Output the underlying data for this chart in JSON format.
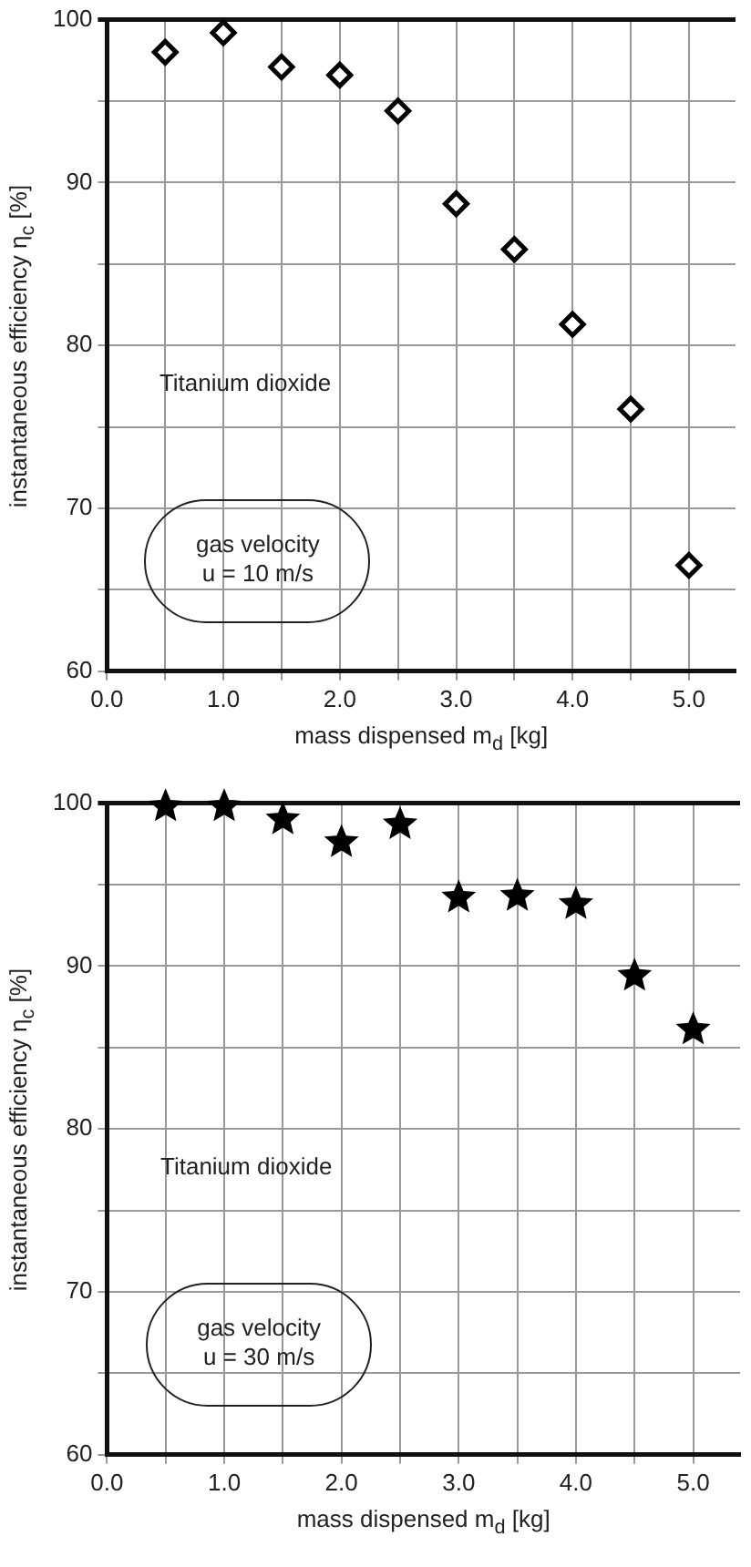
{
  "chart_data": [
    {
      "type": "scatter",
      "xlabel": "mass dispensed m$_{d}$ [kg]",
      "ylabel": "instantaneous efficiency η$_{c}$ [%]",
      "x": [
        0.5,
        1.0,
        1.5,
        2.0,
        2.5,
        3.0,
        3.5,
        4.0,
        4.5,
        5.0
      ],
      "series": [
        {
          "color": "#000000",
          "marker": "diamond",
          "values": [
            98.0,
            99.2,
            97.1,
            96.6,
            94.4,
            88.7,
            85.9,
            81.3,
            76.1,
            66.5
          ]
        }
      ],
      "xlim": [
        0,
        5.4
      ],
      "xticks": [
        {
          "value": 0,
          "label": "0.0"
        },
        {
          "value": 0.5,
          "label": null
        },
        {
          "value": 1,
          "label": "1.0"
        },
        {
          "value": 1.5,
          "label": null
        },
        {
          "value": 2,
          "label": "2.0"
        },
        {
          "value": 2.5,
          "label": null
        },
        {
          "value": 3,
          "label": "3.0"
        },
        {
          "value": 3.5,
          "label": null
        },
        {
          "value": 4,
          "label": "4.0"
        },
        {
          "value": 4.5,
          "label": null
        },
        {
          "value": 5,
          "label": "5.0"
        }
      ],
      "ylim": [
        60,
        100
      ],
      "yticks": [
        60,
        {
          "value": 65,
          "label": null
        },
        70,
        {
          "value": 75,
          "label": null
        },
        80,
        {
          "value": 85,
          "label": null
        },
        90,
        {
          "value": 95,
          "label": null
        },
        100
      ],
      "grid": true,
      "annotations": [
        "Titanium dioxide",
        "gas velocity\nu = 10 m/s"
      ]
    },
    {
      "type": "scatter",
      "xlabel": "mass dispensed m$_{d}$ [kg]",
      "ylabel": "instantaneous efficiency η$_{c}$ [%]",
      "x": [
        0.5,
        1.0,
        1.5,
        2.0,
        2.5,
        3.0,
        3.5,
        4.0,
        4.5,
        5.0
      ],
      "series": [
        {
          "color": "#000000",
          "marker": "star",
          "values": [
            99.8,
            99.8,
            99.0,
            97.6,
            98.7,
            94.2,
            94.3,
            93.8,
            89.4,
            86.1
          ]
        }
      ],
      "xlim": [
        0,
        5.4
      ],
      "xticks": [
        {
          "value": 0,
          "label": "0.0"
        },
        {
          "value": 0.5,
          "label": null
        },
        {
          "value": 1,
          "label": "1.0"
        },
        {
          "value": 1.5,
          "label": null
        },
        {
          "value": 2,
          "label": "2.0"
        },
        {
          "value": 2.5,
          "label": null
        },
        {
          "value": 3,
          "label": "3.0"
        },
        {
          "value": 3.5,
          "label": null
        },
        {
          "value": 4,
          "label": "4.0"
        },
        {
          "value": 4.5,
          "label": null
        },
        {
          "value": 5,
          "label": "5.0"
        }
      ],
      "ylim": [
        60,
        100
      ],
      "yticks": [
        60,
        {
          "value": 65,
          "label": null
        },
        70,
        {
          "value": 75,
          "label": null
        },
        80,
        {
          "value": 85,
          "label": null
        },
        90,
        {
          "value": 95,
          "label": null
        },
        100
      ],
      "grid": true,
      "annotations": [
        "Titanium dioxide",
        "gas velocity\nu = 30 m/s"
      ]
    }
  ]
}
